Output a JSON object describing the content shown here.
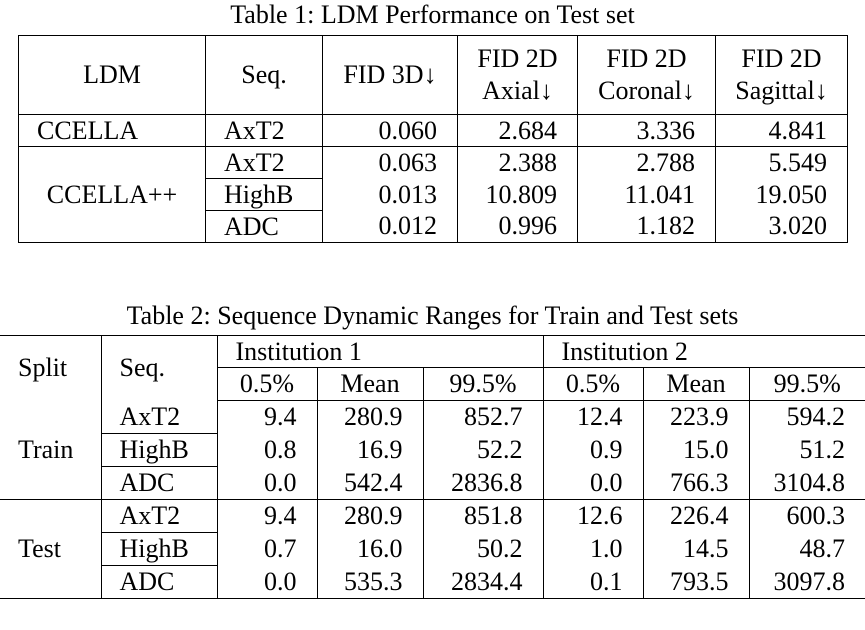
{
  "table1": {
    "caption": "Table 1: LDM Performance on Test set",
    "headers": [
      "LDM",
      "Seq.",
      "FID 3D↓",
      "FID 2D\nAxial↓",
      "FID 2D\nCoronal↓",
      "FID 2D\nSagittal↓"
    ],
    "header_lines": {
      "ldm": "LDM",
      "seq": "Seq.",
      "fid3d": "FID 3D↓",
      "axial_1": "FID 2D",
      "axial_2": "Axial↓",
      "coronal_1": "FID 2D",
      "coronal_2": "Coronal↓",
      "sagittal_1": "FID 2D",
      "sagittal_2": "Sagittal↓"
    },
    "groups": [
      {
        "ldm": "CCELLA",
        "rows": [
          {
            "seq": "AxT2",
            "values": [
              "0.060",
              "2.684",
              "3.336",
              "4.841"
            ]
          }
        ]
      },
      {
        "ldm": "CCELLA++",
        "rows": [
          {
            "seq": "AxT2",
            "values": [
              "0.063",
              "2.388",
              "2.788",
              "5.549"
            ]
          },
          {
            "seq": "HighB",
            "values": [
              "0.013",
              "10.809",
              "11.041",
              "19.050"
            ]
          },
          {
            "seq": "ADC",
            "values": [
              "0.012",
              "0.996",
              "1.182",
              "3.020"
            ]
          }
        ]
      }
    ]
  },
  "table2": {
    "caption": "Table 2: Sequence Dynamic Ranges for Train and Test sets",
    "split_header": "Split",
    "seq_header": "Seq.",
    "institutions": [
      "Institution 1",
      "Institution 2"
    ],
    "sub_headers": [
      "0.5%",
      "Mean",
      "99.5%"
    ],
    "groups": [
      {
        "split": "Train",
        "rows": [
          {
            "seq": "AxT2",
            "values": [
              "9.4",
              "280.9",
              "852.7",
              "12.4",
              "223.9",
              "594.2"
            ]
          },
          {
            "seq": "HighB",
            "values": [
              "0.8",
              "16.9",
              "52.2",
              "0.9",
              "15.0",
              "51.2"
            ]
          },
          {
            "seq": "ADC",
            "values": [
              "0.0",
              "542.4",
              "2836.8",
              "0.0",
              "766.3",
              "3104.8"
            ]
          }
        ]
      },
      {
        "split": "Test",
        "rows": [
          {
            "seq": "AxT2",
            "values": [
              "9.4",
              "280.9",
              "851.8",
              "12.6",
              "226.4",
              "600.3"
            ]
          },
          {
            "seq": "HighB",
            "values": [
              "0.7",
              "16.0",
              "50.2",
              "1.0",
              "14.5",
              "48.7"
            ]
          },
          {
            "seq": "ADC",
            "values": [
              "0.0",
              "535.3",
              "2834.4",
              "0.1",
              "793.5",
              "3097.8"
            ]
          }
        ]
      }
    ]
  }
}
